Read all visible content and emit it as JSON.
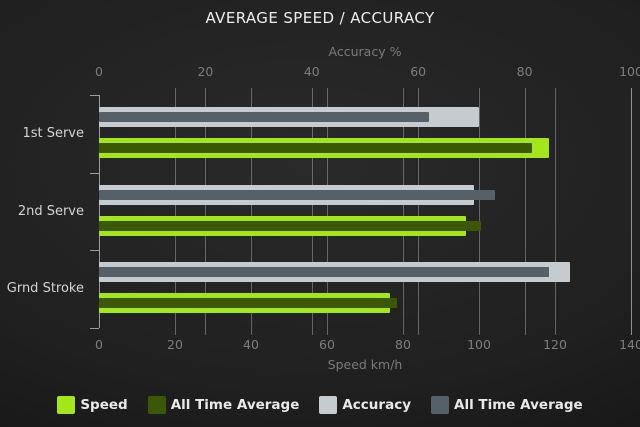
{
  "chart_data": {
    "type": "bar",
    "orientation": "horizontal",
    "title": "AVERAGE SPEED / ACCURACY",
    "categories": [
      "1st Serve",
      "2nd Serve",
      "Grnd Stroke"
    ],
    "series": [
      {
        "name": "Speed",
        "slug": "speed",
        "axis": "bottom",
        "overlay": false,
        "color": "#a3e61a",
        "values": [
          118.5,
          96.5,
          76.5
        ]
      },
      {
        "name": "All Time Average",
        "slug": "speed-average",
        "axis": "bottom",
        "overlay": true,
        "color": "#3c5806",
        "values": [
          114,
          100.5,
          78.5
        ]
      },
      {
        "name": "Accuracy",
        "slug": "accuracy",
        "axis": "top",
        "overlay": false,
        "color": "#c6cbd0",
        "values": [
          71.5,
          70.5,
          88.5
        ]
      },
      {
        "name": "All Time Average",
        "slug": "accuracy-average",
        "axis": "top",
        "overlay": true,
        "color": "#556069",
        "values": [
          62,
          74.5,
          84.5
        ]
      }
    ],
    "axes": {
      "top": {
        "label": "Accuracy %",
        "min": 0,
        "max": 100,
        "ticks": [
          0,
          20,
          40,
          60,
          80,
          100
        ]
      },
      "bottom": {
        "label": "Speed km/h",
        "min": 0,
        "max": 140,
        "ticks": [
          0,
          20,
          40,
          60,
          80,
          100,
          120,
          140
        ]
      }
    },
    "legend_position": "bottom",
    "grid": true,
    "background": "dark",
    "colors": {
      "title_text": "#ededed",
      "axis_text": "#7a7a7a",
      "category_text": "#d4d4d4",
      "legend_text": "#e9e9e9"
    }
  }
}
